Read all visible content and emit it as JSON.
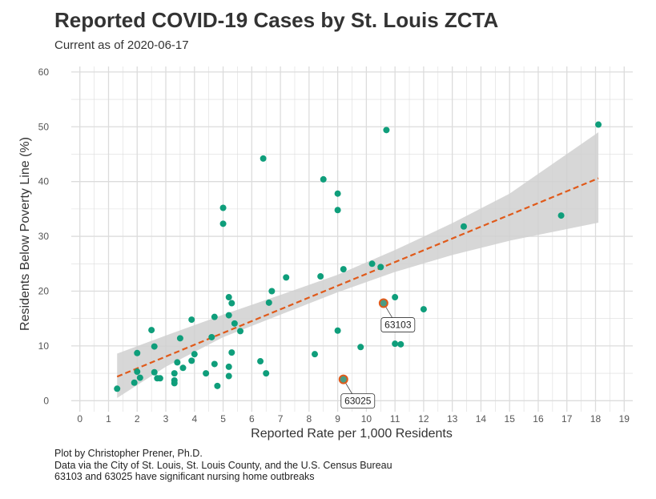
{
  "title": "Reported COVID-19 Cases by St. Louis ZCTA",
  "subtitle": "Current as of 2020-06-17",
  "caption": [
    "Plot by Christopher Prener, Ph.D.",
    "Data via the City of St. Louis, St. Louis County, and the U.S. Census Bureau",
    "63103 and 63025 have significant nursing home outbreaks"
  ],
  "colors": {
    "points": "#0f9e7b",
    "highlight_fill": "#4a9c84",
    "highlight_stroke": "#e05a1a",
    "trend": "#e05a1a",
    "band": "#d0d0d0",
    "grid": "#dcdcdc"
  },
  "chart_data": {
    "type": "scatter",
    "xlabel": "Reported Rate per 1,000 Residents",
    "ylabel": "Residents Below Poverty Line (%)",
    "xlim": [
      -0.3,
      19.3
    ],
    "ylim": [
      -2,
      61
    ],
    "xticks": [
      0,
      1,
      2,
      3,
      4,
      5,
      6,
      7,
      8,
      9,
      10,
      11,
      12,
      13,
      14,
      15,
      16,
      17,
      18,
      19
    ],
    "yticks": [
      0,
      10,
      20,
      30,
      40,
      50,
      60
    ],
    "grid": true,
    "points": [
      [
        1.3,
        2.2
      ],
      [
        1.9,
        3.3
      ],
      [
        2.0,
        5.3
      ],
      [
        2.0,
        8.7
      ],
      [
        2.1,
        4.2
      ],
      [
        2.5,
        12.9
      ],
      [
        2.6,
        9.9
      ],
      [
        2.6,
        5.2
      ],
      [
        2.7,
        4.1
      ],
      [
        2.8,
        4.1
      ],
      [
        3.3,
        5.0
      ],
      [
        3.3,
        3.7
      ],
      [
        3.3,
        3.2
      ],
      [
        3.4,
        7.0
      ],
      [
        3.5,
        11.4
      ],
      [
        3.6,
        6.0
      ],
      [
        3.9,
        14.8
      ],
      [
        3.9,
        7.3
      ],
      [
        4.0,
        8.5
      ],
      [
        4.4,
        5.0
      ],
      [
        4.6,
        11.6
      ],
      [
        4.7,
        15.3
      ],
      [
        4.7,
        6.7
      ],
      [
        4.8,
        2.7
      ],
      [
        5.0,
        35.2
      ],
      [
        5.0,
        32.3
      ],
      [
        5.2,
        15.6
      ],
      [
        5.2,
        18.9
      ],
      [
        5.3,
        17.8
      ],
      [
        5.3,
        8.8
      ],
      [
        5.2,
        6.2
      ],
      [
        5.2,
        4.5
      ],
      [
        5.4,
        14.1
      ],
      [
        5.6,
        12.7
      ],
      [
        6.4,
        44.2
      ],
      [
        6.3,
        7.2
      ],
      [
        6.5,
        5.0
      ],
      [
        6.6,
        17.9
      ],
      [
        6.7,
        20.0
      ],
      [
        7.2,
        22.5
      ],
      [
        8.2,
        8.5
      ],
      [
        8.4,
        22.7
      ],
      [
        8.5,
        40.4
      ],
      [
        9.0,
        37.8
      ],
      [
        9.0,
        34.8
      ],
      [
        9.0,
        12.8
      ],
      [
        9.2,
        24.0
      ],
      [
        9.8,
        9.8
      ],
      [
        10.2,
        25.0
      ],
      [
        10.5,
        24.4
      ],
      [
        10.7,
        49.4
      ],
      [
        11.0,
        18.9
      ],
      [
        11.0,
        10.4
      ],
      [
        11.2,
        10.3
      ],
      [
        12.0,
        16.7
      ],
      [
        13.4,
        31.8
      ],
      [
        16.8,
        33.8
      ],
      [
        18.1,
        50.4
      ]
    ],
    "highlighted": [
      {
        "label": "63103",
        "x": 10.6,
        "y": 17.8
      },
      {
        "label": "63025",
        "x": 9.2,
        "y": 3.9
      }
    ],
    "trend_line": {
      "x": [
        1.3,
        18.1
      ],
      "y": [
        4.4,
        40.6
      ]
    },
    "confidence_band": {
      "x": [
        1.3,
        3.0,
        5.0,
        7.0,
        9.0,
        11.0,
        13.0,
        15.0,
        18.1
      ],
      "lower": [
        0.5,
        6.2,
        11.6,
        15.7,
        19.8,
        23.5,
        26.6,
        29.2,
        32.5
      ],
      "upper": [
        8.6,
        11.9,
        15.7,
        19.3,
        23.0,
        27.5,
        32.4,
        37.8,
        49.0
      ]
    }
  }
}
